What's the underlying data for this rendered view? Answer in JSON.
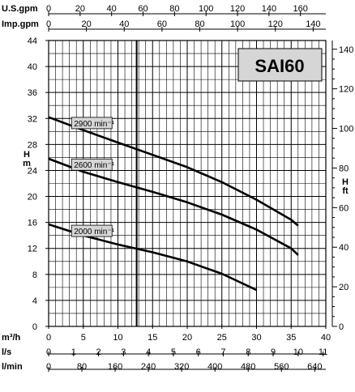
{
  "chart_data": {
    "type": "line",
    "title": "SAI60",
    "ylabel_left": "H m",
    "ylabel_right": "H ft",
    "x_primary": {
      "unit": "m³/h",
      "min": 0,
      "max": 40,
      "ticks": [
        0,
        5,
        10,
        15,
        20,
        25,
        30,
        35,
        40
      ]
    },
    "x_axes_top": [
      {
        "unit": "U.S.gpm",
        "max": 176.1,
        "ticks": [
          0,
          20,
          40,
          60,
          80,
          100,
          120,
          140,
          160
        ]
      },
      {
        "unit": "Imp.gpm",
        "max": 146.7,
        "ticks": [
          0,
          20,
          40,
          60,
          80,
          100,
          120,
          140
        ]
      }
    ],
    "x_axes_bottom": [
      {
        "unit": "l/s",
        "max": 11.11,
        "ticks": [
          0,
          1,
          2,
          3,
          4,
          5,
          6,
          7,
          8,
          9,
          10,
          11
        ]
      },
      {
        "unit": "l/min",
        "max": 666.7,
        "ticks": [
          0,
          80,
          160,
          240,
          320,
          400,
          480,
          560,
          640
        ]
      }
    ],
    "y_left": {
      "unit": "m",
      "min": 0,
      "max": 44,
      "ticks": [
        0,
        4,
        8,
        12,
        16,
        20,
        24,
        28,
        32,
        36,
        40,
        44
      ]
    },
    "y_right": {
      "unit": "ft",
      "min": 0,
      "max": 144.4,
      "ticks": [
        0,
        20,
        40,
        60,
        80,
        100,
        120,
        140
      ]
    },
    "vertical_marker_x": 12.7,
    "grid": true,
    "series": [
      {
        "name": "2900 min⁻¹",
        "x": [
          0,
          5,
          10,
          15,
          20,
          25,
          30,
          35,
          36
        ],
        "y": [
          32.2,
          30.2,
          28.3,
          26.4,
          24.5,
          22.2,
          19.5,
          16.4,
          15.5
        ]
      },
      {
        "name": "2600 min⁻¹",
        "x": [
          0,
          5,
          10,
          15,
          20,
          25,
          30,
          35,
          36
        ],
        "y": [
          25.8,
          23.8,
          22.2,
          20.7,
          19.1,
          17.2,
          14.9,
          12.0,
          11.0
        ]
      },
      {
        "name": "2000 min⁻¹",
        "x": [
          0,
          5,
          10,
          15,
          20,
          25,
          30
        ],
        "y": [
          15.7,
          14.0,
          12.6,
          11.4,
          10.0,
          8.1,
          5.6
        ]
      }
    ]
  }
}
